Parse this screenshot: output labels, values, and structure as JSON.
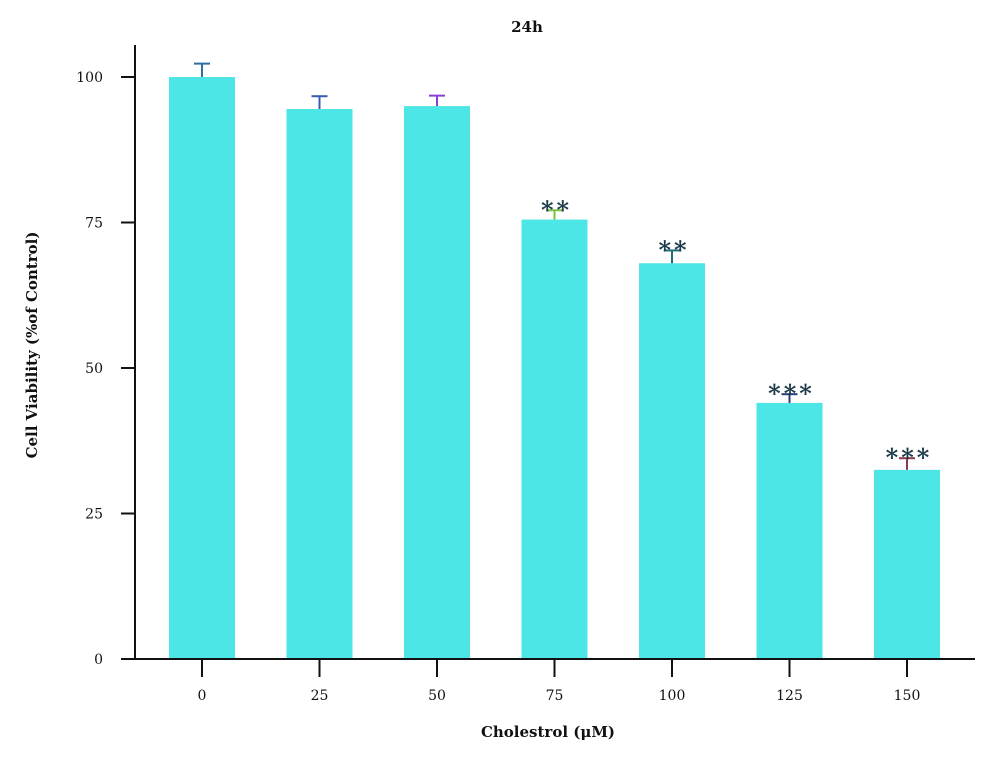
{
  "chart_data": {
    "type": "bar",
    "title": "24h",
    "xlabel": "Cholestrol (μM)",
    "ylabel": "Cell Viability (%of Control)",
    "categories": [
      "0",
      "25",
      "50",
      "75",
      "100",
      "125",
      "150"
    ],
    "values": [
      100,
      94.5,
      95,
      75.5,
      68,
      44,
      32.5
    ],
    "errors": [
      2.3,
      2.2,
      1.8,
      1.6,
      2.2,
      1.5,
      2.0
    ],
    "significance": [
      "",
      "",
      "",
      "**",
      "**",
      "***",
      "***"
    ],
    "ylim": [
      0,
      100
    ],
    "yticks": [
      0,
      25,
      50,
      75,
      100
    ],
    "grid": false,
    "legend": "none",
    "colors": {
      "bar": "#4de6e6",
      "axis": "#111111",
      "error_bars": [
        "#2f6fa0",
        "#3a5cb0",
        "#8b3fd8",
        "#7ac142",
        "#1f6f7a",
        "#2a3f7a",
        "#8a3a4a"
      ]
    }
  }
}
